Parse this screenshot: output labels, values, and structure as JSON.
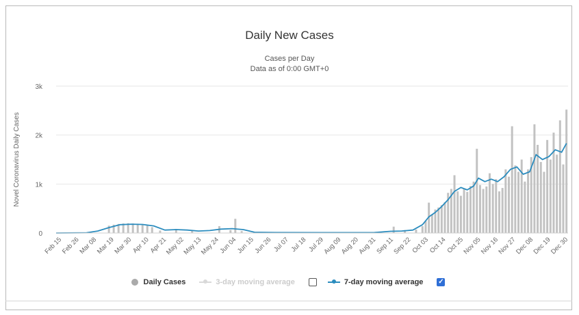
{
  "chart_data": {
    "type": "bar",
    "title": "Daily New Cases",
    "subtitle": "Cases per Day",
    "subtitle2": "Data as of 0:00 GMT+0",
    "xlabel": "",
    "ylabel": "Novel Coronavirus Daily Cases",
    "ylim": [
      0,
      3000
    ],
    "y_ticks": [
      {
        "value": 0,
        "label": "0"
      },
      {
        "value": 1000,
        "label": "1k"
      },
      {
        "value": 2000,
        "label": "2k"
      },
      {
        "value": 3000,
        "label": "3k"
      }
    ],
    "x_start": "2020-02-15",
    "x_end": "2020-12-31",
    "x_tick_labels": [
      "Feb 15",
      "Feb 26",
      "Mar 08",
      "Mar 19",
      "Mar 30",
      "Apr 10",
      "Apr 21",
      "May 02",
      "May 13",
      "May 24",
      "Jun 04",
      "Jun 15",
      "Jun 26",
      "Jul 07",
      "Jul 18",
      "Jul 29",
      "Aug 09",
      "Aug 20",
      "Aug 31",
      "Sep 11",
      "Sep 22",
      "Oct 03",
      "Oct 14",
      "Oct 25",
      "Nov 05",
      "Nov 16",
      "Nov 27",
      "Dec 08",
      "Dec 19",
      "Dec 30"
    ],
    "grid": true,
    "legend_position": "bottom",
    "series": [
      {
        "name": "Daily Cases",
        "type": "bar",
        "color": "#c2c2c2",
        "points": [
          {
            "x": "2020-03-19",
            "y": 150
          },
          {
            "x": "2020-03-22",
            "y": 170
          },
          {
            "x": "2020-03-25",
            "y": 185
          },
          {
            "x": "2020-03-28",
            "y": 195
          },
          {
            "x": "2020-03-31",
            "y": 200
          },
          {
            "x": "2020-04-03",
            "y": 195
          },
          {
            "x": "2020-04-06",
            "y": 190
          },
          {
            "x": "2020-04-09",
            "y": 180
          },
          {
            "x": "2020-04-12",
            "y": 160
          },
          {
            "x": "2020-04-15",
            "y": 120
          },
          {
            "x": "2020-04-20",
            "y": 50
          },
          {
            "x": "2020-04-30",
            "y": 80
          },
          {
            "x": "2020-05-10",
            "y": 50
          },
          {
            "x": "2020-05-27",
            "y": 140
          },
          {
            "x": "2020-06-03",
            "y": 60
          },
          {
            "x": "2020-06-06",
            "y": 290
          },
          {
            "x": "2020-06-10",
            "y": 40
          },
          {
            "x": "2020-09-13",
            "y": 130
          },
          {
            "x": "2020-09-20",
            "y": 60
          },
          {
            "x": "2020-09-27",
            "y": 70
          },
          {
            "x": "2020-10-01",
            "y": 140
          },
          {
            "x": "2020-10-03",
            "y": 250
          },
          {
            "x": "2020-10-05",
            "y": 620
          },
          {
            "x": "2020-10-07",
            "y": 380
          },
          {
            "x": "2020-10-09",
            "y": 480
          },
          {
            "x": "2020-10-11",
            "y": 520
          },
          {
            "x": "2020-10-13",
            "y": 570
          },
          {
            "x": "2020-10-15",
            "y": 630
          },
          {
            "x": "2020-10-17",
            "y": 820
          },
          {
            "x": "2020-10-19",
            "y": 900
          },
          {
            "x": "2020-10-21",
            "y": 1180
          },
          {
            "x": "2020-10-23",
            "y": 850
          },
          {
            "x": "2020-10-25",
            "y": 760
          },
          {
            "x": "2020-10-27",
            "y": 900
          },
          {
            "x": "2020-10-29",
            "y": 840
          },
          {
            "x": "2020-10-31",
            "y": 960
          },
          {
            "x": "2020-11-02",
            "y": 1050
          },
          {
            "x": "2020-11-04",
            "y": 1720
          },
          {
            "x": "2020-11-06",
            "y": 980
          },
          {
            "x": "2020-11-08",
            "y": 900
          },
          {
            "x": "2020-11-10",
            "y": 950
          },
          {
            "x": "2020-11-12",
            "y": 1220
          },
          {
            "x": "2020-11-14",
            "y": 1000
          },
          {
            "x": "2020-11-16",
            "y": 1100
          },
          {
            "x": "2020-11-18",
            "y": 850
          },
          {
            "x": "2020-11-20",
            "y": 920
          },
          {
            "x": "2020-11-22",
            "y": 1300
          },
          {
            "x": "2020-11-24",
            "y": 1150
          },
          {
            "x": "2020-11-26",
            "y": 2180
          },
          {
            "x": "2020-11-28",
            "y": 1380
          },
          {
            "x": "2020-11-30",
            "y": 1250
          },
          {
            "x": "2020-12-02",
            "y": 1500
          },
          {
            "x": "2020-12-04",
            "y": 1050
          },
          {
            "x": "2020-12-06",
            "y": 1300
          },
          {
            "x": "2020-12-08",
            "y": 1550
          },
          {
            "x": "2020-12-10",
            "y": 2220
          },
          {
            "x": "2020-12-12",
            "y": 1800
          },
          {
            "x": "2020-12-14",
            "y": 1450
          },
          {
            "x": "2020-12-16",
            "y": 1250
          },
          {
            "x": "2020-12-18",
            "y": 1900
          },
          {
            "x": "2020-12-20",
            "y": 1500
          },
          {
            "x": "2020-12-22",
            "y": 2050
          },
          {
            "x": "2020-12-24",
            "y": 1600
          },
          {
            "x": "2020-12-26",
            "y": 2300
          },
          {
            "x": "2020-12-28",
            "y": 1400
          },
          {
            "x": "2020-12-30",
            "y": 2520
          }
        ]
      },
      {
        "name": "3-day moving average",
        "type": "line",
        "color": "#d9d9d9",
        "visible": false,
        "checked": false
      },
      {
        "name": "7-day moving average",
        "type": "line",
        "color": "#2b8cbe",
        "visible": true,
        "checked": true,
        "points": [
          {
            "x": "2020-02-15",
            "y": 0
          },
          {
            "x": "2020-03-05",
            "y": 5
          },
          {
            "x": "2020-03-12",
            "y": 40
          },
          {
            "x": "2020-03-19",
            "y": 110
          },
          {
            "x": "2020-03-26",
            "y": 170
          },
          {
            "x": "2020-04-02",
            "y": 180
          },
          {
            "x": "2020-04-09",
            "y": 175
          },
          {
            "x": "2020-04-16",
            "y": 145
          },
          {
            "x": "2020-04-23",
            "y": 60
          },
          {
            "x": "2020-04-30",
            "y": 70
          },
          {
            "x": "2020-05-07",
            "y": 60
          },
          {
            "x": "2020-05-14",
            "y": 40
          },
          {
            "x": "2020-05-21",
            "y": 50
          },
          {
            "x": "2020-05-28",
            "y": 80
          },
          {
            "x": "2020-06-04",
            "y": 90
          },
          {
            "x": "2020-06-11",
            "y": 70
          },
          {
            "x": "2020-06-18",
            "y": 15
          },
          {
            "x": "2020-07-01",
            "y": 10
          },
          {
            "x": "2020-08-01",
            "y": 8
          },
          {
            "x": "2020-09-01",
            "y": 10
          },
          {
            "x": "2020-09-11",
            "y": 35
          },
          {
            "x": "2020-09-18",
            "y": 40
          },
          {
            "x": "2020-09-25",
            "y": 60
          },
          {
            "x": "2020-10-01",
            "y": 170
          },
          {
            "x": "2020-10-05",
            "y": 330
          },
          {
            "x": "2020-10-09",
            "y": 420
          },
          {
            "x": "2020-10-13",
            "y": 540
          },
          {
            "x": "2020-10-17",
            "y": 680
          },
          {
            "x": "2020-10-21",
            "y": 850
          },
          {
            "x": "2020-10-25",
            "y": 930
          },
          {
            "x": "2020-10-29",
            "y": 880
          },
          {
            "x": "2020-11-02",
            "y": 960
          },
          {
            "x": "2020-11-05",
            "y": 1120
          },
          {
            "x": "2020-11-09",
            "y": 1050
          },
          {
            "x": "2020-11-13",
            "y": 1100
          },
          {
            "x": "2020-11-17",
            "y": 1050
          },
          {
            "x": "2020-11-21",
            "y": 1150
          },
          {
            "x": "2020-11-25",
            "y": 1300
          },
          {
            "x": "2020-11-29",
            "y": 1350
          },
          {
            "x": "2020-12-03",
            "y": 1200
          },
          {
            "x": "2020-12-07",
            "y": 1250
          },
          {
            "x": "2020-12-11",
            "y": 1600
          },
          {
            "x": "2020-12-15",
            "y": 1500
          },
          {
            "x": "2020-12-19",
            "y": 1560
          },
          {
            "x": "2020-12-23",
            "y": 1700
          },
          {
            "x": "2020-12-27",
            "y": 1650
          },
          {
            "x": "2020-12-30",
            "y": 1830
          }
        ]
      }
    ]
  },
  "colors": {
    "grid": "#e6e6e6",
    "axis_text": "#666666",
    "checkbox_checked": "#2f6fd6"
  },
  "icons": {
    "checked_checkbox": "check-icon"
  }
}
